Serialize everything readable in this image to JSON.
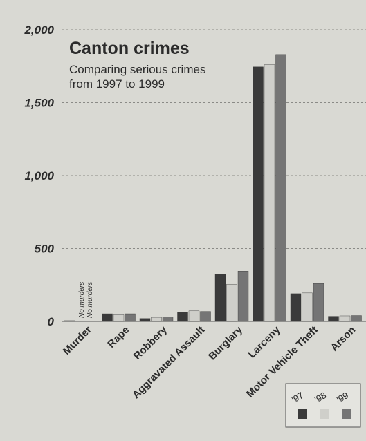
{
  "colors": {
    "background": "#d9d9d3",
    "grid": "#8a8a86",
    "text": "#2b2b2b",
    "series_97": "#3a3a3a",
    "series_98": "#cfcfca",
    "series_99": "#757575"
  },
  "chart_data": {
    "type": "bar",
    "title": "Canton crimes",
    "subtitle_lines": [
      "Comparing serious crimes",
      "from 1997 to 1999"
    ],
    "xlabel": "",
    "ylabel": "",
    "ylim": [
      0,
      2000
    ],
    "yticks": [
      {
        "value": 0,
        "label": "0"
      },
      {
        "value": 500,
        "label": "500"
      },
      {
        "value": 1000,
        "label": "1,000"
      },
      {
        "value": 1500,
        "label": "1,500"
      },
      {
        "value": 2000,
        "label": "2,000"
      }
    ],
    "grid": true,
    "legend_position": "bottom-right",
    "categories": [
      "Murder",
      "Rape",
      "Robbery",
      "Aggravated Assault",
      "Burglary",
      "Larceny",
      "Motor Vehicle Theft",
      "Arson"
    ],
    "series": [
      {
        "name": "'97",
        "values": [
          5,
          52,
          20,
          65,
          325,
          1745,
          190,
          35
        ]
      },
      {
        "name": "'98",
        "values": [
          0,
          50,
          28,
          72,
          255,
          1760,
          195,
          38
        ]
      },
      {
        "name": "'99",
        "values": [
          0,
          52,
          32,
          68,
          345,
          1830,
          260,
          40
        ]
      }
    ],
    "annotations": [
      "No murders",
      "No murders"
    ]
  }
}
